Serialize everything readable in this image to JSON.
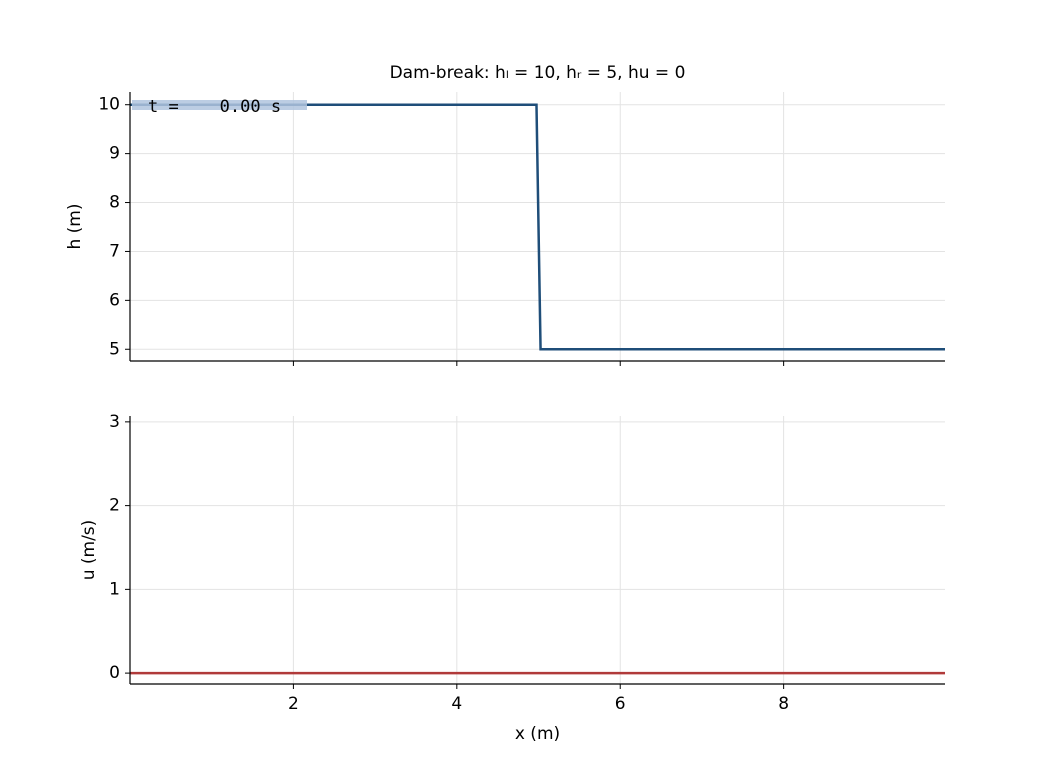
{
  "chart_data": [
    {
      "type": "line",
      "title": "Dam-break: hₗ = 10, hᵣ = 5, hu = 0",
      "ylabel": "h (m)",
      "annotation": "t =    0.00 s",
      "x": [
        0,
        4.975,
        5.025,
        9.975
      ],
      "series": [
        {
          "name": "h",
          "color": "#1f4e79",
          "values": [
            10,
            10,
            5,
            5
          ]
        }
      ],
      "xlim": [
        0,
        9.975
      ],
      "xticks": [
        2,
        4,
        6,
        8
      ],
      "ylim": [
        4.76,
        10.26
      ],
      "yticks": [
        5,
        6,
        7,
        8,
        9,
        10
      ],
      "grid": true
    },
    {
      "type": "line",
      "ylabel": "u (m/s)",
      "xlabel": "x (m)",
      "x": [
        0,
        9.975
      ],
      "series": [
        {
          "name": "u",
          "color": "#b03a3a",
          "values": [
            0,
            0
          ]
        }
      ],
      "xlim": [
        0,
        9.975
      ],
      "xticks": [
        2,
        4,
        6,
        8
      ],
      "ylim": [
        -0.13,
        3.07
      ],
      "yticks": [
        0,
        1,
        2,
        3
      ],
      "grid": true
    }
  ]
}
